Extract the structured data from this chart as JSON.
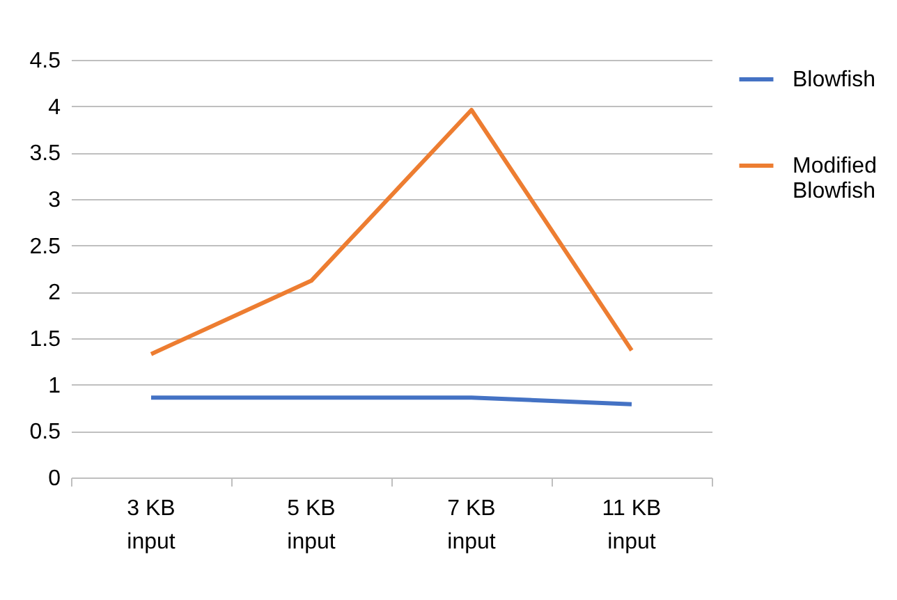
{
  "chart_data": {
    "type": "line",
    "categories": [
      "3 KB input",
      "5 KB input",
      "7 KB input",
      "11 KB input"
    ],
    "series": [
      {
        "name": "Blowfish",
        "color": "#4472c4",
        "values": [
          0.86,
          0.86,
          0.86,
          0.79
        ]
      },
      {
        "name": "Modified Blowfish",
        "color": "#ed7d31",
        "values": [
          1.33,
          2.12,
          3.96,
          1.37
        ]
      }
    ],
    "ylim": [
      0,
      4.5
    ],
    "yticks": [
      0,
      0.5,
      1,
      1.5,
      2,
      2.5,
      3,
      3.5,
      4,
      4.5
    ],
    "grid": "y",
    "legend": "right",
    "marker": "none",
    "line_style": "solid"
  }
}
